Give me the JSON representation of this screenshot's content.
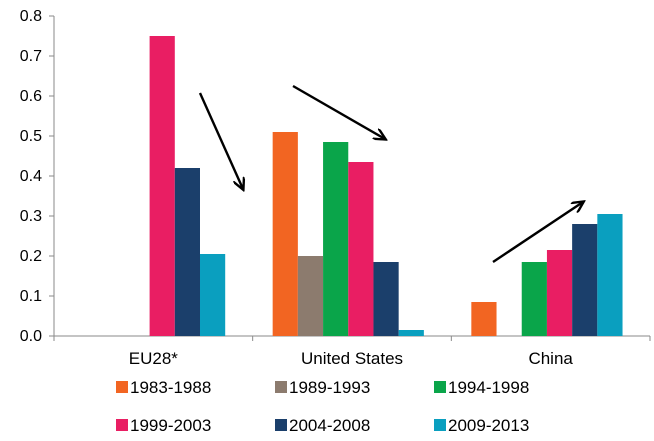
{
  "chart_data": {
    "type": "bar",
    "categories": [
      "EU28*",
      "United States",
      "China"
    ],
    "ylim": [
      0,
      0.8
    ],
    "yticks": [
      "0.0",
      "0.1",
      "0.2",
      "0.3",
      "0.4",
      "0.5",
      "0.6",
      "0.7",
      "0.8"
    ],
    "grid": false,
    "legend_position": "bottom",
    "series": [
      {
        "name": "1983-1988",
        "color": "#f26522",
        "values": [
          null,
          0.51,
          0.085
        ]
      },
      {
        "name": "1989-1993",
        "color": "#8c7b6e",
        "values": [
          null,
          0.2,
          null
        ]
      },
      {
        "name": "1994-1998",
        "color": "#0aa54a",
        "values": [
          null,
          0.485,
          0.185
        ]
      },
      {
        "name": "1999-2003",
        "color": "#e91e63",
        "values": [
          0.75,
          0.435,
          0.215
        ]
      },
      {
        "name": "2004-2008",
        "color": "#1b3f6b",
        "values": [
          0.42,
          0.185,
          0.28
        ]
      },
      {
        "name": "2009-2013",
        "color": "#0a9fbf",
        "values": [
          0.205,
          0.015,
          0.305
        ]
      }
    ],
    "annotations": [
      {
        "type": "arrow",
        "direction": "down",
        "near_category": "EU28*"
      },
      {
        "type": "arrow",
        "direction": "down",
        "near_category": "United States"
      },
      {
        "type": "arrow",
        "direction": "up",
        "near_category": "China"
      }
    ]
  }
}
